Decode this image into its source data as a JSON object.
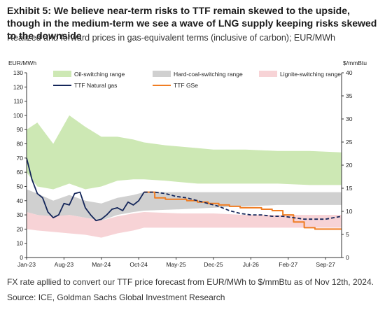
{
  "header": {
    "title": "Exhibit 5: We believe near-term risks to TTF remain skewed to the upside, though in the medium-term we see a wave of LNG supply keeping risks skewed to the downside",
    "subtitle": "Realized and forward prices in gas-equivalent terms (inclusive of carbon); EUR/MWh"
  },
  "footer": {
    "note": "FX rate apllied to convert our TTF price forecast from EUR/MWh to $/mmBtu as of Nov 12th, 2024.",
    "source": "Source: ICE, Goldman Sachs Global Investment Research"
  },
  "chart_data": {
    "type": "area",
    "ylabel": "EUR/MWh",
    "y2label": "$/mmBtu",
    "ylim": [
      0,
      130
    ],
    "y2lim": [
      0,
      40
    ],
    "yticks": [
      0,
      10,
      20,
      30,
      40,
      50,
      60,
      70,
      80,
      90,
      100,
      110,
      120,
      130
    ],
    "y2ticks": [
      0,
      5,
      10,
      15,
      20,
      25,
      30,
      35,
      40
    ],
    "xlim": [
      "2023-01",
      "2027-12"
    ],
    "xticks": [
      "Jan-23",
      "Aug-23",
      "Mar-24",
      "Oct-24",
      "May-25",
      "Dec-25",
      "Jul-26",
      "Feb-27",
      "Sep-27"
    ],
    "xtick_months": [
      "2023-01",
      "2023-08",
      "2024-03",
      "2024-10",
      "2025-05",
      "2025-12",
      "2026-07",
      "2027-02",
      "2027-09"
    ],
    "grid": false,
    "legend_position": "top",
    "bands": [
      {
        "name": "Oil-switching range",
        "color": "#cde8b4",
        "x": [
          "2023-01",
          "2023-03",
          "2023-06",
          "2023-09",
          "2023-12",
          "2024-03",
          "2024-06",
          "2024-09",
          "2024-11",
          "2025-03",
          "2025-06",
          "2025-09",
          "2025-12",
          "2026-06",
          "2026-12",
          "2027-06",
          "2027-12"
        ],
        "low": [
          60,
          50,
          48,
          52,
          48,
          50,
          54,
          55,
          55,
          54,
          53,
          52,
          52,
          52,
          52,
          51,
          51
        ],
        "high": [
          90,
          95,
          80,
          100,
          92,
          85,
          85,
          83,
          81,
          79,
          78,
          77,
          76,
          76,
          75,
          75,
          74
        ]
      },
      {
        "name": "Hard-coal-switching range",
        "color": "#d0d0d0",
        "x": [
          "2023-01",
          "2023-03",
          "2023-06",
          "2023-09",
          "2023-12",
          "2024-03",
          "2024-06",
          "2024-09",
          "2024-11",
          "2025-06",
          "2025-12",
          "2026-06",
          "2026-12",
          "2027-06",
          "2027-12"
        ],
        "low": [
          32,
          30,
          28,
          30,
          28,
          26,
          30,
          32,
          33,
          34,
          35,
          36,
          37,
          37,
          37
        ],
        "high": [
          48,
          45,
          40,
          44,
          40,
          38,
          42,
          44,
          46,
          46,
          46,
          46,
          46,
          46,
          46
        ]
      },
      {
        "name": "Lignite-switching range",
        "color": "#f7d3d6",
        "x": [
          "2023-01",
          "2023-03",
          "2023-06",
          "2023-09",
          "2023-12",
          "2024-03",
          "2024-06",
          "2024-09",
          "2024-11",
          "2025-06",
          "2025-12",
          "2026-06",
          "2026-12",
          "2027-06",
          "2027-12"
        ],
        "low": [
          20,
          19,
          18,
          17,
          16,
          14,
          17,
          19,
          21,
          21,
          21,
          21,
          21,
          21,
          21
        ],
        "high": [
          32,
          30,
          29,
          30,
          28,
          26,
          29,
          31,
          32,
          31,
          31,
          30,
          30,
          30,
          30
        ]
      }
    ],
    "series": [
      {
        "name": "TTF Natural gas",
        "color": "#14265a",
        "realized": {
          "x": [
            "2023-01",
            "2023-02",
            "2023-03",
            "2023-04",
            "2023-05",
            "2023-06",
            "2023-07",
            "2023-08",
            "2023-09",
            "2023-10",
            "2023-11",
            "2023-12",
            "2024-01",
            "2024-02",
            "2024-03",
            "2024-04",
            "2024-05",
            "2024-06",
            "2024-07",
            "2024-08",
            "2024-09",
            "2024-10",
            "2024-11"
          ],
          "y": [
            70,
            55,
            45,
            42,
            32,
            28,
            30,
            38,
            37,
            45,
            46,
            35,
            30,
            26,
            27,
            30,
            34,
            35,
            33,
            39,
            37,
            40,
            46
          ]
        },
        "forward": {
          "x": [
            "2024-11",
            "2025-01",
            "2025-03",
            "2025-05",
            "2025-07",
            "2025-09",
            "2025-11",
            "2026-01",
            "2026-03",
            "2026-05",
            "2026-07",
            "2026-09",
            "2026-11",
            "2027-01",
            "2027-03",
            "2027-05",
            "2027-07",
            "2027-09",
            "2027-12"
          ],
          "y": [
            46,
            46,
            45,
            43,
            42,
            40,
            38,
            36,
            33,
            31,
            30,
            30,
            29,
            29,
            28,
            27,
            27,
            27,
            29
          ]
        }
      },
      {
        "name": "TTF GSe",
        "color": "#f07d23",
        "x": [
          "2024-11",
          "2025-01",
          "2025-03",
          "2025-05",
          "2025-07",
          "2025-09",
          "2025-11",
          "2026-01",
          "2026-03",
          "2026-05",
          "2026-07",
          "2026-09",
          "2026-11",
          "2027-01",
          "2027-03",
          "2027-05",
          "2027-07",
          "2027-09",
          "2027-12"
        ],
        "y": [
          46,
          42,
          41,
          41,
          40,
          39,
          38,
          37,
          36,
          35,
          35,
          34,
          33,
          30,
          25,
          21,
          20,
          20,
          20
        ]
      }
    ]
  }
}
